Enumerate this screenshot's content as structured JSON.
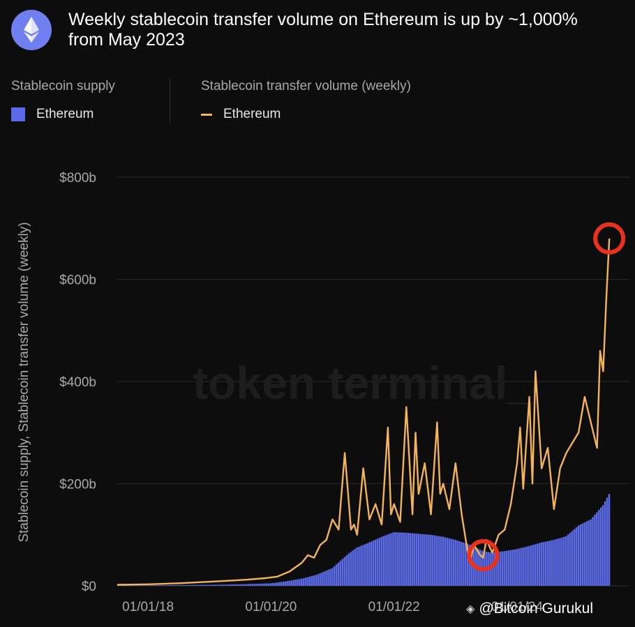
{
  "header": {
    "title": "Weekly stablecoin transfer volume on Ethereum is up by ~1,000% from May 2023",
    "icon": "ethereum-icon"
  },
  "legend": {
    "supply_heading": "Stablecoin supply",
    "supply_entry": "Ethereum",
    "volume_heading": "Stablecoin transfer volume (weekly)",
    "volume_entry": "Ethereum"
  },
  "watermark": "token terminal_",
  "footer": {
    "credit": "@Bitcoin Gurukul",
    "icon": "binance-diamond-icon"
  },
  "colors": {
    "background": "#0d0d0d",
    "supply": "#5b6ae6",
    "volume": "#f3b45c",
    "highlight": "#e8321e",
    "grid": "#2a2a2a",
    "tick_text": "#a9a9a9"
  },
  "chart_data": {
    "type": "area",
    "title": "Weekly stablecoin transfer volume on Ethereum is up by ~1,000% from May 2023",
    "ylabel": "Stablecoin supply, Stablecoin transfer volume (weekly)",
    "xlabel": "",
    "ylim": [
      0,
      800
    ],
    "xlim": [
      2017.5,
      2025.6
    ],
    "y_unit": "billion USD",
    "yticks": [
      0,
      200,
      400,
      600,
      800
    ],
    "ytick_labels": [
      "$0",
      "$200b",
      "$400b",
      "$600b",
      "$800b"
    ],
    "xticks": [
      2018.0,
      2020.0,
      2022.0,
      2024.0
    ],
    "xtick_labels": [
      "01/01/18",
      "01/01/20",
      "01/01/22",
      "01/01/24"
    ],
    "grid": true,
    "legend_position": "top",
    "series": [
      {
        "name": "Ethereum",
        "group": "Stablecoin supply",
        "kind": "bars",
        "x": [
          2017.5,
          2018.0,
          2018.5,
          2019.0,
          2019.5,
          2020.0,
          2020.25,
          2020.5,
          2020.75,
          2021.0,
          2021.25,
          2021.4,
          2021.6,
          2021.8,
          2022.0,
          2022.2,
          2022.4,
          2022.6,
          2022.8,
          2023.0,
          2023.2,
          2023.35,
          2023.45,
          2023.6,
          2023.8,
          2024.0,
          2024.2,
          2024.4,
          2024.6,
          2024.8,
          2025.0,
          2025.2,
          2025.4,
          2025.5
        ],
        "values": [
          0.5,
          1,
          1.5,
          2,
          3,
          5,
          9,
          14,
          22,
          35,
          62,
          75,
          85,
          96,
          105,
          104,
          102,
          100,
          96,
          90,
          82,
          74,
          68,
          65,
          68,
          72,
          78,
          85,
          90,
          97,
          118,
          130,
          158,
          180
        ]
      },
      {
        "name": "Ethereum",
        "group": "Stablecoin transfer volume (weekly)",
        "kind": "line",
        "x": [
          2017.5,
          2018.0,
          2018.5,
          2019.0,
          2019.3,
          2019.6,
          2019.9,
          2020.1,
          2020.3,
          2020.5,
          2020.6,
          2020.7,
          2020.8,
          2020.9,
          2021.0,
          2021.1,
          2021.2,
          2021.3,
          2021.35,
          2021.4,
          2021.5,
          2021.6,
          2021.7,
          2021.8,
          2021.9,
          2021.95,
          2022.0,
          2022.1,
          2022.2,
          2022.3,
          2022.35,
          2022.4,
          2022.5,
          2022.6,
          2022.7,
          2022.75,
          2022.8,
          2022.9,
          2023.0,
          2023.1,
          2023.2,
          2023.25,
          2023.3,
          2023.4,
          2023.45,
          2023.5,
          2023.6,
          2023.7,
          2023.8,
          2023.9,
          2024.0,
          2024.05,
          2024.1,
          2024.2,
          2024.25,
          2024.3,
          2024.4,
          2024.5,
          2024.6,
          2024.7,
          2024.8,
          2024.9,
          2025.0,
          2025.1,
          2025.2,
          2025.3,
          2025.35,
          2025.4,
          2025.45,
          2025.5
        ],
        "values": [
          2,
          3,
          5,
          8,
          10,
          12,
          15,
          18,
          28,
          45,
          60,
          55,
          80,
          90,
          130,
          110,
          260,
          110,
          120,
          100,
          230,
          130,
          160,
          120,
          310,
          140,
          160,
          125,
          350,
          140,
          300,
          180,
          240,
          140,
          320,
          180,
          200,
          150,
          240,
          140,
          65,
          55,
          80,
          60,
          55,
          90,
          65,
          100,
          110,
          160,
          240,
          310,
          190,
          370,
          200,
          420,
          230,
          270,
          150,
          230,
          260,
          280,
          300,
          370,
          320,
          270,
          460,
          420,
          560,
          680
        ]
      }
    ],
    "annotations": [
      {
        "type": "circle",
        "label": "low",
        "x": 2023.45,
        "y": 60
      },
      {
        "type": "circle",
        "label": "peak",
        "x": 2025.5,
        "y": 680
      }
    ]
  }
}
